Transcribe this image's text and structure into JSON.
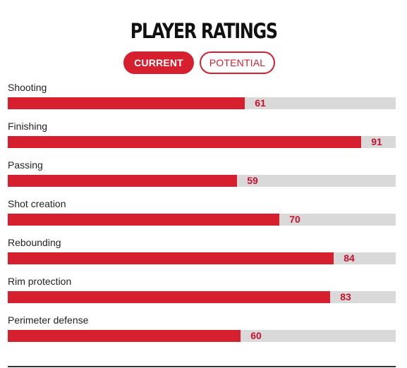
{
  "title": "PLAYER RATINGS",
  "tabs": [
    {
      "label": "CURRENT",
      "active": true
    },
    {
      "label": "POTENTIAL",
      "active": false
    }
  ],
  "colors": {
    "accent": "#d7202f",
    "track": "#d9d9d9"
  },
  "ratings": [
    {
      "label": "Shooting",
      "value": 61
    },
    {
      "label": "Finishing",
      "value": 91
    },
    {
      "label": "Passing",
      "value": 59
    },
    {
      "label": "Shot creation",
      "value": 70
    },
    {
      "label": "Rebounding",
      "value": 84
    },
    {
      "label": "Rim protection",
      "value": 83
    },
    {
      "label": "Perimeter defense",
      "value": 60
    }
  ]
}
